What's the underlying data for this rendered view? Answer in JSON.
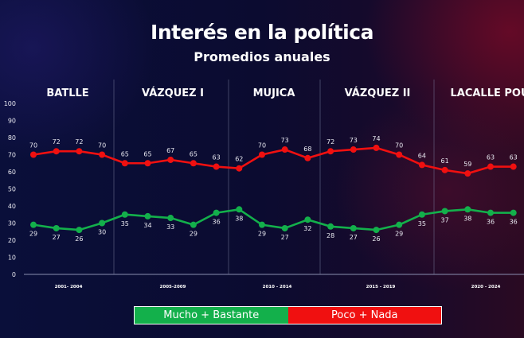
{
  "chart_data": {
    "type": "line",
    "title": "Interés en la política",
    "subtitle": "Promedios anuales",
    "ylim": [
      0,
      100
    ],
    "yticks": [
      0,
      10,
      20,
      30,
      40,
      50,
      60,
      70,
      80,
      90,
      100
    ],
    "grid": false,
    "legend_position": "bottom",
    "periods": [
      {
        "name": "BATLLE",
        "label": "2001- 2004"
      },
      {
        "name": "VÁZQUEZ I",
        "label": "2005-2009"
      },
      {
        "name": "MUJICA",
        "label": "2010 - 2014"
      },
      {
        "name": "VÁZQUEZ II",
        "label": "2015 - 2019"
      },
      {
        "name": "LACALLE POU",
        "label": "2020 - 2024"
      }
    ],
    "series": [
      {
        "name": "Mucho + Bastante",
        "color": "#13b04b",
        "values": [
          29,
          27,
          26,
          30,
          35,
          34,
          33,
          29,
          36,
          38,
          29,
          27,
          32,
          28,
          27,
          26,
          29,
          35,
          37,
          38,
          36,
          36
        ]
      },
      {
        "name": "Poco + Nada",
        "color": "#f01010",
        "values": [
          70,
          72,
          72,
          70,
          65,
          65,
          67,
          65,
          63,
          62,
          70,
          73,
          68,
          72,
          73,
          74,
          70,
          64,
          61,
          59,
          63,
          63
        ]
      }
    ]
  }
}
